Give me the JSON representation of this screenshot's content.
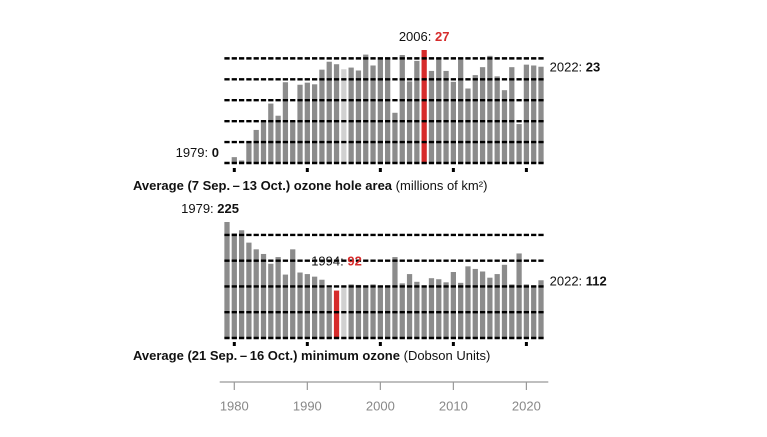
{
  "chart_data": [
    {
      "type": "bar",
      "title": "Average (7 Sep. – 13 Oct.) ozone hole area",
      "unit": "(millions of km²)",
      "x": [
        1979,
        1980,
        1981,
        1982,
        1983,
        1984,
        1985,
        1986,
        1987,
        1988,
        1989,
        1990,
        1991,
        1992,
        1993,
        1994,
        1995,
        1996,
        1997,
        1998,
        1999,
        2000,
        2001,
        2002,
        2003,
        2004,
        2005,
        2006,
        2007,
        2008,
        2009,
        2010,
        2011,
        2012,
        2013,
        2014,
        2015,
        2016,
        2017,
        2018,
        2019,
        2020,
        2021,
        2022
      ],
      "values": [
        0,
        1.4,
        0.6,
        4.8,
        7.9,
        10.1,
        14.2,
        11.3,
        19.3,
        10,
        18.7,
        19.2,
        18.8,
        22.3,
        24.2,
        23.6,
        22.4,
        22.8,
        22.1,
        25.9,
        23.3,
        24.8,
        25,
        12,
        25.8,
        19.5,
        24.4,
        27,
        22,
        25.2,
        22,
        19.4,
        24.7,
        17.8,
        21,
        22.9,
        25.6,
        20.7,
        17.4,
        22.9,
        9.3,
        23.5,
        23.3,
        23
      ],
      "colors": [
        "#8c8c8c",
        "#8c8c8c",
        "#8c8c8c",
        "#8c8c8c",
        "#8c8c8c",
        "#8c8c8c",
        "#8c8c8c",
        "#8c8c8c",
        "#8c8c8c",
        "#8c8c8c",
        "#8c8c8c",
        "#8c8c8c",
        "#8c8c8c",
        "#8c8c8c",
        "#8c8c8c",
        "#8c8c8c",
        "#d0d0d0",
        "#8c8c8c",
        "#8c8c8c",
        "#8c8c8c",
        "#8c8c8c",
        "#8c8c8c",
        "#8c8c8c",
        "#8c8c8c",
        "#8c8c8c",
        "#8c8c8c",
        "#8c8c8c",
        "#d62b2b",
        "#8c8c8c",
        "#8c8c8c",
        "#8c8c8c",
        "#8c8c8c",
        "#8c8c8c",
        "#8c8c8c",
        "#8c8c8c",
        "#8c8c8c",
        "#8c8c8c",
        "#8c8c8c",
        "#8c8c8c",
        "#8c8c8c",
        "#8c8c8c",
        "#8c8c8c",
        "#8c8c8c",
        "#8c8c8c"
      ],
      "annotations": [
        {
          "x": 1979,
          "text": "1979:"
        },
        {
          "x": 2006,
          "text": "2006:"
        },
        {
          "x": 2022,
          "text": "2022:"
        }
      ],
      "ylim": [
        0,
        27
      ],
      "yticks": [
        0,
        5,
        10,
        15,
        20,
        25
      ],
      "grid": true
    },
    {
      "type": "bar",
      "title": "Average (21 Sep. – 16 Oct.) minimum ozone",
      "unit": "(Dobson Units)",
      "x": [
        1979,
        1980,
        1981,
        1982,
        1983,
        1984,
        1985,
        1986,
        1987,
        1988,
        1989,
        1990,
        1991,
        1992,
        1993,
        1994,
        1995,
        1996,
        1997,
        1998,
        1999,
        2000,
        2001,
        2002,
        2003,
        2004,
        2005,
        2006,
        2007,
        2008,
        2009,
        2010,
        2011,
        2012,
        2013,
        2014,
        2015,
        2016,
        2017,
        2018,
        2019,
        2020,
        2021,
        2022
      ],
      "values": [
        225,
        203,
        209,
        185,
        172,
        163,
        144,
        157,
        123,
        172,
        127,
        124,
        119,
        113,
        97,
        92,
        100,
        104,
        103,
        98,
        104,
        101,
        102,
        157,
        106,
        124,
        109,
        98,
        116,
        114,
        108,
        128,
        107,
        139,
        134,
        129,
        117,
        124,
        142,
        104,
        164,
        104,
        102,
        112
      ],
      "colors": [
        "#8c8c8c",
        "#8c8c8c",
        "#8c8c8c",
        "#8c8c8c",
        "#8c8c8c",
        "#8c8c8c",
        "#8c8c8c",
        "#8c8c8c",
        "#8c8c8c",
        "#8c8c8c",
        "#8c8c8c",
        "#8c8c8c",
        "#8c8c8c",
        "#8c8c8c",
        "#8c8c8c",
        "#d62b2b",
        "#d0d0d0",
        "#8c8c8c",
        "#8c8c8c",
        "#8c8c8c",
        "#8c8c8c",
        "#8c8c8c",
        "#8c8c8c",
        "#8c8c8c",
        "#8c8c8c",
        "#8c8c8c",
        "#8c8c8c",
        "#8c8c8c",
        "#8c8c8c",
        "#8c8c8c",
        "#8c8c8c",
        "#8c8c8c",
        "#8c8c8c",
        "#8c8c8c",
        "#8c8c8c",
        "#8c8c8c",
        "#8c8c8c",
        "#8c8c8c",
        "#8c8c8c",
        "#8c8c8c",
        "#8c8c8c",
        "#8c8c8c",
        "#8c8c8c",
        "#8c8c8c"
      ],
      "annotations": [
        {
          "x": 1979,
          "text": "1979:"
        },
        {
          "x": 1994,
          "text": "1994:"
        },
        {
          "x": 2022,
          "text": "2022:"
        }
      ],
      "ylim": [
        0,
        225
      ],
      "yticks": [
        0,
        50,
        100,
        150,
        200
      ],
      "grid": true,
      "xlim": [
        1978,
        2023
      ],
      "xticks": [
        1980,
        1990,
        2000,
        2010,
        2020
      ]
    }
  ]
}
